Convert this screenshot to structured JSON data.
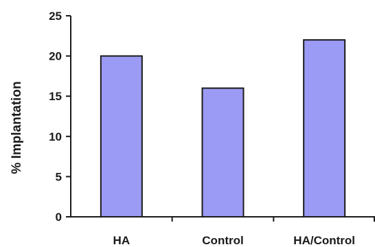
{
  "chart_data": {
    "type": "bar",
    "title": "",
    "xlabel": "",
    "ylabel": "% Implantation",
    "categories": [
      "HA",
      "Control",
      "HA/Control"
    ],
    "values": [
      20,
      16,
      22
    ],
    "ylim": [
      0,
      25
    ],
    "yticks": [
      "0",
      "5",
      "10",
      "15",
      "20",
      "25"
    ],
    "grid": false,
    "colors": {
      "bar_fill": "#9b9bf5",
      "bar_stroke": "#1a1a1a",
      "axis": "#1a1a1a"
    }
  }
}
